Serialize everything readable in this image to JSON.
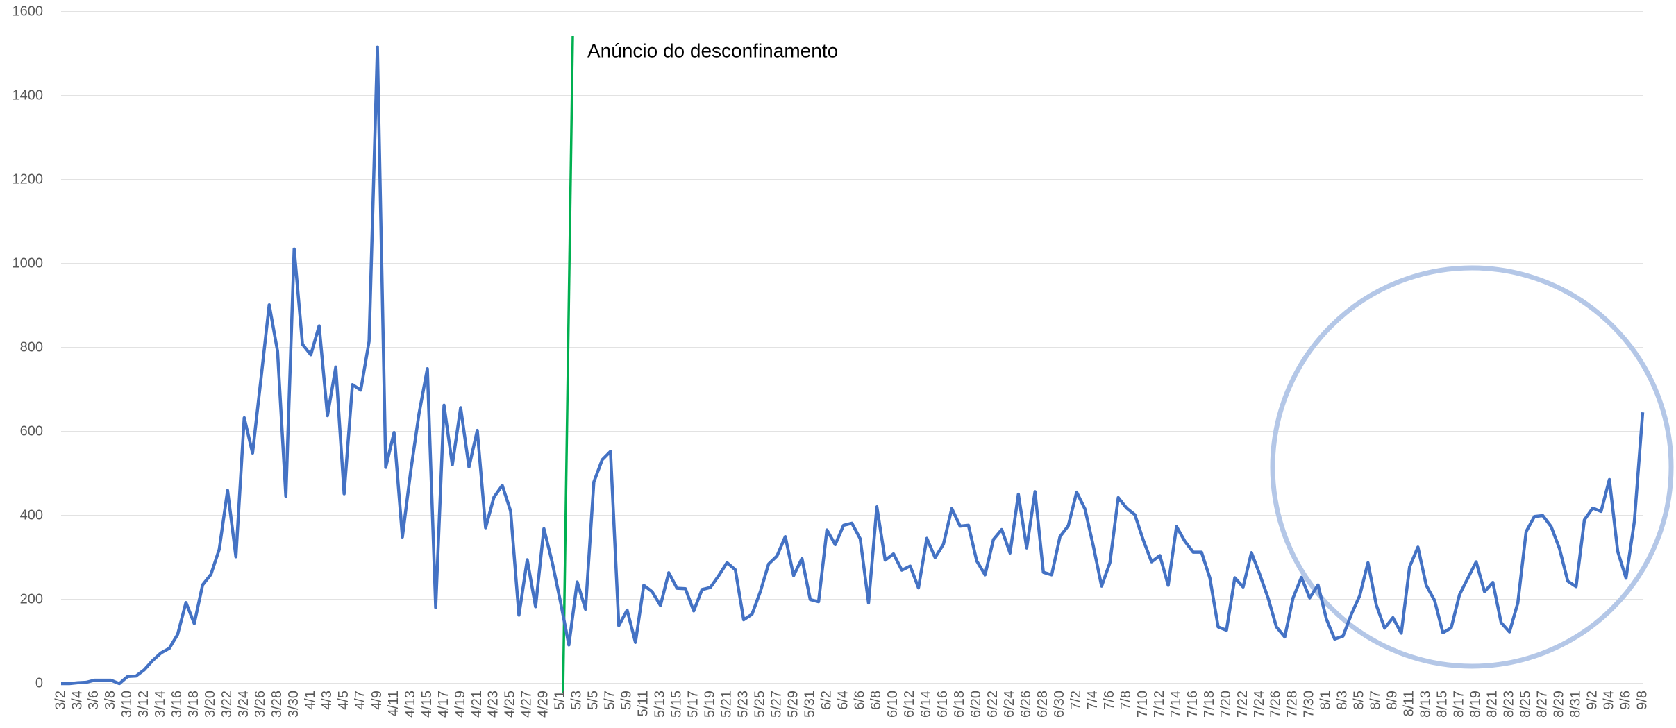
{
  "chart_data": {
    "type": "line",
    "annotation": "Anúncio do desconfinamento",
    "categories": [
      "3/2",
      null,
      "3/4",
      null,
      "3/6",
      null,
      "3/8",
      null,
      "3/10",
      null,
      "3/12",
      null,
      "3/14",
      null,
      "3/16",
      null,
      "3/18",
      null,
      "3/20",
      null,
      "3/22",
      null,
      "3/24",
      null,
      "3/26",
      null,
      "3/28",
      null,
      "3/30",
      null,
      "4/1",
      null,
      "4/3",
      null,
      "4/5",
      null,
      "4/7",
      null,
      "4/9",
      null,
      "4/11",
      null,
      "4/13",
      null,
      "4/15",
      null,
      "4/17",
      null,
      "4/19",
      null,
      "4/21",
      null,
      "4/23",
      null,
      "4/25",
      null,
      "4/27",
      null,
      "4/29",
      null,
      "5/1",
      null,
      "5/3",
      null,
      "5/5",
      null,
      "5/7",
      null,
      "5/9",
      null,
      "5/11",
      null,
      "5/13",
      null,
      "5/15",
      null,
      "5/17",
      null,
      "5/19",
      null,
      "5/21",
      null,
      "5/23",
      null,
      "5/25",
      null,
      "5/27",
      null,
      "5/29",
      null,
      "5/31",
      null,
      "6/2",
      null,
      "6/4",
      null,
      "6/6",
      null,
      "6/8",
      null,
      "6/10",
      null,
      "6/12",
      null,
      "6/14",
      null,
      "6/16",
      null,
      "6/18",
      null,
      "6/20",
      null,
      "6/22",
      null,
      "6/24",
      null,
      "6/26",
      null,
      "6/28",
      null,
      "6/30",
      null,
      "7/2",
      null,
      "7/4",
      null,
      "7/6",
      null,
      "7/8",
      null,
      "7/10",
      null,
      "7/12",
      null,
      "7/14",
      null,
      "7/16",
      null,
      "7/18",
      null,
      "7/20",
      null,
      "7/22",
      null,
      "7/24",
      null,
      "7/26",
      null,
      "7/28",
      null,
      "7/30",
      null,
      "8/1",
      null,
      "8/3",
      null,
      "8/5",
      null,
      "8/7",
      null,
      "8/9",
      null,
      "8/11",
      null,
      "8/13",
      null,
      "8/15",
      null,
      "8/17",
      null,
      "8/19",
      null,
      "8/21",
      null,
      "8/23",
      null,
      "8/25",
      null,
      "8/27",
      null,
      "8/29",
      null,
      "8/31",
      null,
      "9/2",
      null,
      "9/4",
      null,
      "9/6",
      null,
      "9/8"
    ],
    "series": [
      {
        "color": "#4472c4",
        "values": [
          0,
          0,
          2,
          3,
          8,
          8,
          8,
          0,
          17,
          18,
          33,
          55,
          73,
          84,
          117,
          193,
          143,
          235,
          260,
          320,
          460,
          302,
          633,
          549,
          724,
          902,
          792,
          446,
          1035,
          808,
          783,
          852,
          638,
          754,
          452,
          712,
          699,
          815,
          1516,
          515,
          598,
          349,
          506,
          643,
          750,
          181,
          663,
          521,
          657,
          516,
          603,
          371,
          444,
          472,
          411,
          163,
          295,
          183,
          369,
          289,
          194,
          92,
          242,
          177,
          480,
          533,
          553,
          138,
          175,
          98,
          234,
          219,
          186,
          264,
          227,
          226,
          173,
          224,
          229,
          257,
          288,
          271,
          152,
          165,
          219,
          285,
          304,
          350,
          257,
          298,
          200,
          195,
          366,
          331,
          377,
          382,
          345,
          192,
          421,
          294,
          309,
          270,
          280,
          228,
          346,
          300,
          332,
          417,
          375,
          377,
          292,
          259,
          343,
          367,
          311,
          451,
          323,
          457,
          265,
          259,
          350,
          376,
          456,
          416,
          328,
          232,
          288,
          443,
          418,
          402,
          342,
          290,
          305,
          234,
          374,
          339,
          313,
          313,
          252,
          135,
          127,
          252,
          230,
          312,
          260,
          204,
          135,
          111,
          204,
          253,
          204,
          235,
          154,
          106,
          113,
          165,
          209,
          288,
          187,
          132,
          157,
          120,
          278,
          325,
          234,
          198,
          121,
          133,
          212,
          251,
          290,
          219,
          241,
          145,
          123,
          192,
          362,
          398,
          400,
          374,
          322,
          244,
          231,
          390,
          418,
          410,
          486,
          315,
          251,
          386,
          646
        ]
      }
    ],
    "ylim": [
      0,
      1600
    ],
    "yticks": [
      0,
      200,
      400,
      600,
      800,
      1000,
      1200,
      1400,
      1600
    ],
    "grid": true
  }
}
